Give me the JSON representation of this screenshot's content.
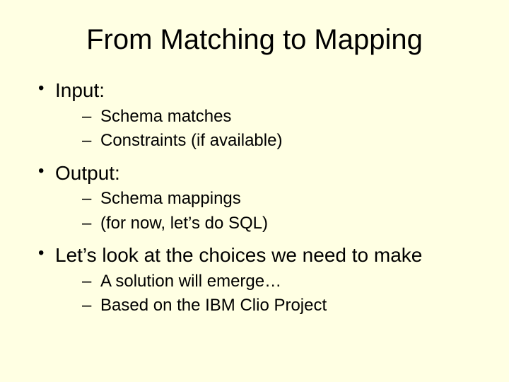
{
  "background_color": "#ffffe3",
  "text_color": "#000000",
  "font_family": "Arial",
  "title": {
    "text": "From Matching to Mapping",
    "fontsize": 40,
    "align": "center"
  },
  "body": {
    "level1_fontsize": 28,
    "level2_fontsize": 24,
    "items": [
      {
        "text": "Input:",
        "sub": [
          "Schema matches",
          "Constraints (if available)"
        ]
      },
      {
        "text": "Output:",
        "sub": [
          "Schema mappings",
          "(for now, let’s do SQL)"
        ]
      },
      {
        "text": "Let’s look at the choices we need to make",
        "sub": [
          "A solution will emerge…",
          "Based on the IBM Clio Project"
        ]
      }
    ]
  }
}
